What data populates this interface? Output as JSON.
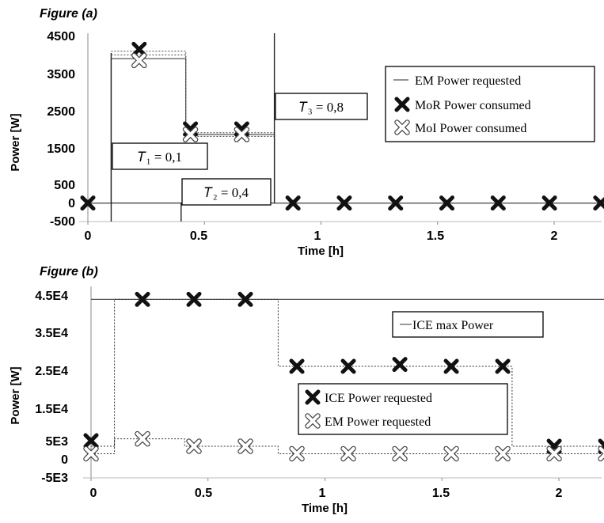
{
  "chart_data": [
    {
      "type": "line",
      "title": "Figure (a)",
      "xlabel": "Time [h]",
      "ylabel": "Power [W]",
      "xlim": [
        0,
        2.2
      ],
      "ylim": [
        -500,
        4500
      ],
      "xticks": [
        "0",
        "0.5",
        "1",
        "1.5",
        "2"
      ],
      "xtick_values": [
        0,
        0.5,
        1,
        1.5,
        2
      ],
      "yticks": [
        "4500",
        "3500",
        "2500",
        "1500",
        "500",
        "0",
        "-500"
      ],
      "ytick_values": [
        4500,
        3500,
        2500,
        1500,
        500,
        0,
        -500
      ],
      "grid": false,
      "legend_position": "right",
      "series": [
        {
          "name": "EM Power requested",
          "style": "solid-step",
          "x": [
            0,
            0.1,
            0.1,
            0.42,
            0.42,
            0.8,
            0.8,
            2.2
          ],
          "y": [
            0,
            0,
            3900,
            3900,
            1850,
            1850,
            0,
            0
          ]
        },
        {
          "name": "MoR Power consumed",
          "marker": "filled-x",
          "x": [
            0,
            0.22,
            0.44,
            0.66,
            0.88,
            1.1,
            1.32,
            1.54,
            1.76,
            1.98,
            2.2
          ],
          "y": [
            0,
            4150,
            2000,
            2000,
            0,
            0,
            0,
            0,
            0,
            0,
            0
          ]
        },
        {
          "name": "MoI Power consumed",
          "marker": "hollow-x",
          "x": [
            0.22,
            0.44,
            0.66
          ],
          "y": [
            3850,
            1850,
            1850
          ]
        }
      ],
      "annotations": [
        {
          "text": "𝑇₁ = 0,1"
        },
        {
          "text": "𝑇₂ = 0,4"
        },
        {
          "text": "𝑇₃ = 0,8"
        }
      ]
    },
    {
      "type": "line",
      "title": "Figure (b)",
      "xlabel": "Time [h]",
      "ylabel": "Power [W]",
      "xlim": [
        0,
        2.2
      ],
      "ylim": [
        -5000,
        45000
      ],
      "xticks": [
        "0",
        "0.5",
        "1",
        "1.5",
        "2"
      ],
      "xtick_values": [
        0,
        0.5,
        1,
        1.5,
        2
      ],
      "yticks": [
        "4.5E4",
        "3.5E4",
        "2.5E4",
        "1.5E4",
        "5E3",
        "0",
        "-5E3"
      ],
      "ytick_values": [
        45000,
        35000,
        25000,
        15000,
        5000,
        0,
        -5000
      ],
      "grid": false,
      "legend_position": "right",
      "series": [
        {
          "name": "ICE max Power",
          "style": "solid",
          "x": [
            0,
            2.2
          ],
          "y": [
            43000,
            43000
          ]
        },
        {
          "name": "ICE Power requested",
          "marker": "filled-x",
          "x": [
            0,
            0.22,
            0.44,
            0.66,
            0.88,
            1.1,
            1.32,
            1.54,
            1.76,
            1.98,
            2.2
          ],
          "y": [
            5000,
            43000,
            43000,
            43000,
            25000,
            25000,
            25500,
            25000,
            25000,
            3500,
            3500
          ]
        },
        {
          "name": "EM Power requested",
          "marker": "hollow-x",
          "x": [
            0,
            0.22,
            0.44,
            0.66,
            0.88,
            1.1,
            1.32,
            1.54,
            1.76,
            1.98,
            2.2
          ],
          "y": [
            1500,
            5500,
            3500,
            3500,
            1500,
            1500,
            1500,
            1500,
            1500,
            1500,
            1500
          ]
        },
        {
          "name": "",
          "style": "dotted-step",
          "x": [
            0,
            0.1,
            0.1,
            0.8,
            0.8,
            1.8,
            1.8,
            2.2
          ],
          "y": [
            3500,
            3500,
            43000,
            43000,
            25000,
            25000,
            3500,
            3500
          ]
        },
        {
          "name": "",
          "style": "dotted-step",
          "x": [
            0,
            0.1,
            0.1,
            0.4,
            0.4,
            0.8,
            0.8,
            2.2
          ],
          "y": [
            1500,
            1500,
            5500,
            5500,
            3500,
            3500,
            1500,
            1500
          ]
        }
      ]
    }
  ]
}
